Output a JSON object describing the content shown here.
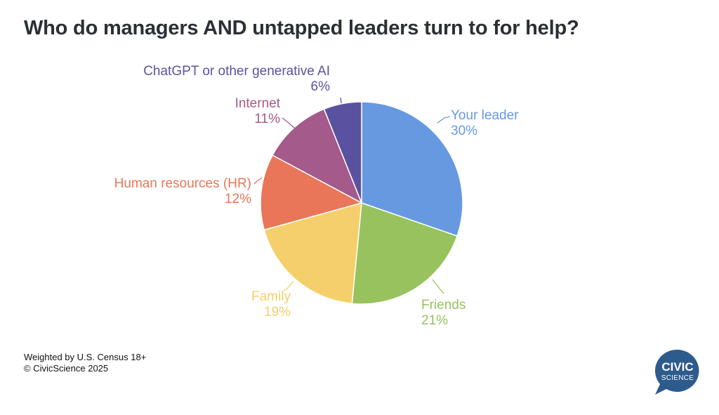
{
  "title": "Who do managers AND untapped leaders turn to for help?",
  "footer": {
    "line1": "Weighted by U.S. Census 18+",
    "line2": "© CivicScience 2025"
  },
  "logo": {
    "line1": "CIVIC",
    "line2": "SCIENCE",
    "color": "#2d5b8c"
  },
  "chart_data": {
    "type": "pie",
    "start_angle_deg": 0,
    "direction": "clockwise",
    "slices": [
      {
        "label": "Your leader",
        "value": 30,
        "value_label": "30%",
        "color": "#6699e0"
      },
      {
        "label": "Friends",
        "value": 21,
        "value_label": "21%",
        "color": "#97c25d"
      },
      {
        "label": "Family",
        "value": 19,
        "value_label": "19%",
        "color": "#f5cf6b"
      },
      {
        "label": "Human resources (HR)",
        "value": 12,
        "value_label": "12%",
        "color": "#e97658"
      },
      {
        "label": "Internet",
        "value": 11,
        "value_label": "11%",
        "color": "#a45a8a"
      },
      {
        "label": "ChatGPT or other generative AI",
        "value": 6,
        "value_label": "6%",
        "color": "#5a52a0"
      }
    ]
  }
}
